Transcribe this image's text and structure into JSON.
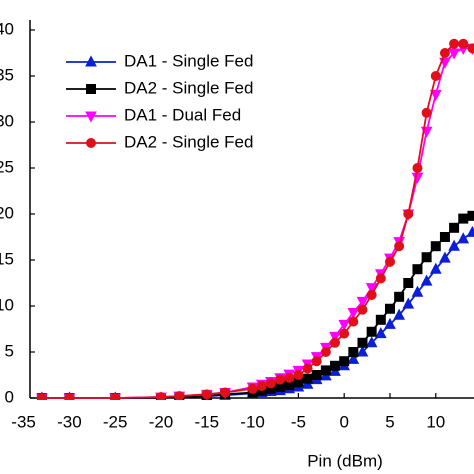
{
  "chart_data": {
    "type": "line",
    "xlabel": "Pin (dBm)",
    "x": [
      -33,
      -30,
      -25,
      -20,
      -18,
      -15,
      -13,
      -10,
      -9,
      -8,
      -7,
      -6,
      -5,
      -4,
      -3,
      -2,
      -1,
      0,
      1,
      2,
      3,
      4,
      5,
      6,
      7,
      8,
      9,
      10,
      11,
      12,
      13,
      14
    ],
    "series": [
      {
        "name": "DA1 - Single Fed",
        "color": "#0a1fd6",
        "marker": "triangle-up",
        "values": [
          0,
          0,
          0,
          0,
          0.1,
          0.2,
          0.3,
          0.5,
          0.6,
          0.7,
          0.8,
          1,
          1.2,
          1.5,
          2,
          2.4,
          2.9,
          3.5,
          4.2,
          5,
          6,
          7,
          8,
          9,
          10.2,
          11.5,
          12.7,
          14,
          15.2,
          16.5,
          17.3,
          18
        ]
      },
      {
        "name": "DA2 - Single Fed",
        "color": "#000000",
        "marker": "square",
        "values": [
          0,
          0,
          0,
          0,
          0.1,
          0.2,
          0.4,
          0.6,
          0.8,
          1,
          1.2,
          1.4,
          1.7,
          2.1,
          2.5,
          3,
          3.5,
          4,
          5,
          6,
          7.2,
          8.5,
          9.7,
          11,
          12.5,
          14,
          15.3,
          16.5,
          17.5,
          18.5,
          19.5,
          19.8
        ]
      },
      {
        "name": "DA1 - Dual Fed",
        "color": "#ff00ff",
        "marker": "triangle-down",
        "values": [
          0,
          0,
          0,
          0.1,
          0.2,
          0.4,
          0.6,
          1.2,
          1.5,
          1.8,
          2.2,
          2.6,
          3,
          3.7,
          4.5,
          5.5,
          6.7,
          8,
          9.3,
          10.5,
          12,
          13.5,
          15.2,
          17,
          20,
          24,
          29,
          33,
          36.5,
          37.5,
          38,
          38
        ]
      },
      {
        "name": "DA2 - Single Fed",
        "color": "#e0101a",
        "marker": "circle",
        "values": [
          0,
          0,
          0,
          0.1,
          0.2,
          0.4,
          0.6,
          1,
          1.3,
          1.6,
          2,
          2.2,
          2.5,
          3.2,
          4,
          5,
          6,
          7,
          8.3,
          9.6,
          11.2,
          13,
          14.8,
          16.5,
          20,
          25,
          31,
          35,
          37.5,
          38.5,
          38.5,
          38
        ]
      }
    ],
    "xlim": [
      -34.3,
      14.5
    ],
    "xticks": [
      -35,
      -30,
      -25,
      -20,
      -15,
      -10,
      -5,
      0,
      5,
      10
    ],
    "ylim": [
      0,
      40
    ],
    "yticks": [
      0,
      5,
      10,
      15,
      20,
      25,
      30,
      35,
      40
    ],
    "legend": "upper left"
  }
}
